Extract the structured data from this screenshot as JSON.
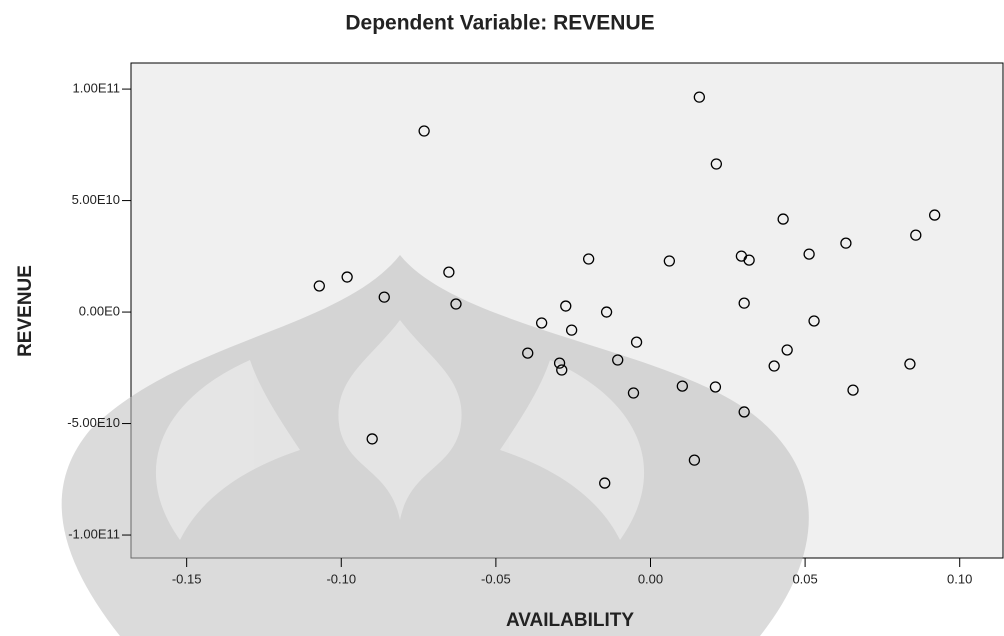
{
  "chart_data": {
    "type": "scatter",
    "title": "Dependent Variable: REVENUE",
    "x_label": "AVAILABILITY",
    "y_label": "REVENUE",
    "xlim": [
      -0.168,
      0.114
    ],
    "ylim": [
      -110300000000,
      111700000000
    ],
    "xticks": [
      -0.15,
      {
        "value": -0.1,
        "label": "-0.10"
      },
      -0.05,
      {
        "value": 0,
        "label": "0.00"
      },
      0.05,
      {
        "value": 0.1,
        "label": "0.10"
      }
    ],
    "yticks": [
      {
        "value": 100000000000,
        "label": "1.00E11"
      },
      {
        "value": 50000000000,
        "label": "5.00E10"
      },
      {
        "value": 0,
        "label": "0.00E0"
      },
      {
        "value": -50000000000,
        "label": "-5.00E10"
      },
      {
        "value": -100000000000,
        "label": "-1.00E11"
      }
    ],
    "grid": false,
    "color": "#000000",
    "background": "#f0f0f0",
    "x": [
      0.0158,
      -0.0732,
      0.0213,
      0.0429,
      0.0919,
      0.0858,
      0.0632,
      0.0513,
      0.0294,
      0.0319,
      -0.02,
      0.0061,
      -0.0652,
      -0.0981,
      -0.1071,
      -0.0861,
      -0.0629,
      -0.0274,
      0.0303,
      -0.0142,
      0.0529,
      -0.0352,
      -0.0255,
      -0.0045,
      0.0442,
      -0.0397,
      -0.0106,
      -0.0294,
      -0.0287,
      0.04,
      0.0839,
      0.0103,
      0.021,
      -0.0055,
      0.0655,
      0.0303,
      -0.09,
      0.0142,
      -0.0148
    ],
    "values": [
      96400000000,
      81200000000,
      66400000000,
      41700000000,
      43500000000,
      34500000000,
      30900000000,
      26000000000,
      25100000000,
      23300000000,
      23800000000,
      22900000000,
      17900000000,
      15700000000,
      11700000000,
      6700000000,
      3600000000,
      2700000000,
      4000000000,
      0,
      -4000000000,
      -4900000000,
      -8100000000,
      -13500000000,
      -17000000000,
      -18400000000,
      -21500000000,
      -22900000000,
      -26000000000,
      -24200000000,
      -23300000000,
      -33200000000,
      -33600000000,
      -36300000000,
      -35000000000,
      -44800000000,
      -56900000000,
      -66400000000,
      -76700000000
    ]
  }
}
